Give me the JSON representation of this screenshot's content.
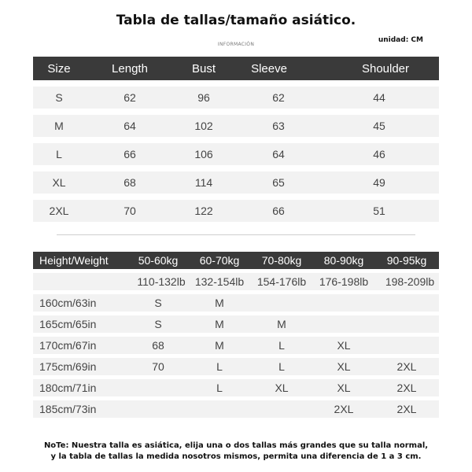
{
  "title": "Tabla de tallas/tamaño asiático.",
  "info": "INFORMACIÓN",
  "unit": "unidad: CM",
  "size_table": {
    "headers": [
      "Size",
      "Length",
      "Bust",
      "Sleeve",
      "Shoulder"
    ],
    "rows": [
      [
        "S",
        "62",
        "96",
        "62",
        "44"
      ],
      [
        "M",
        "64",
        "102",
        "63",
        "45"
      ],
      [
        "L",
        "66",
        "106",
        "64",
        "46"
      ],
      [
        "XL",
        "68",
        "114",
        "65",
        "49"
      ],
      [
        "2XL",
        "70",
        "122",
        "66",
        "51"
      ]
    ]
  },
  "weight_table": {
    "headers": [
      "Height/Weight",
      "50-60kg",
      "60-70kg",
      "70-80kg",
      "80-90kg",
      "90-95kg"
    ],
    "lb_row": [
      "",
      "110-132lb",
      "132-154lb",
      "154-176lb",
      "176-198lb",
      "198-209lb"
    ],
    "rows": [
      [
        "160cm/63in",
        "S",
        "M",
        "",
        "",
        ""
      ],
      [
        "165cm/65in",
        "S",
        "M",
        "M",
        "",
        ""
      ],
      [
        "170cm/67in",
        "68",
        "M",
        "L",
        "XL",
        ""
      ],
      [
        "175cm/69in",
        "70",
        "L",
        "L",
        "XL",
        "2XL"
      ],
      [
        "180cm/71in",
        "",
        "L",
        "XL",
        "XL",
        "2XL"
      ],
      [
        "185cm/73in",
        "",
        "",
        "",
        "2XL",
        "2XL"
      ]
    ]
  },
  "note": {
    "line1": "NoTe: Nuestra talla es asiática, elija una o dos tallas más grandes que su talla normal,",
    "line2": "y la tabla de tallas la medida nosotros mismos, permita una diferencia de 1 a 3 cm."
  }
}
